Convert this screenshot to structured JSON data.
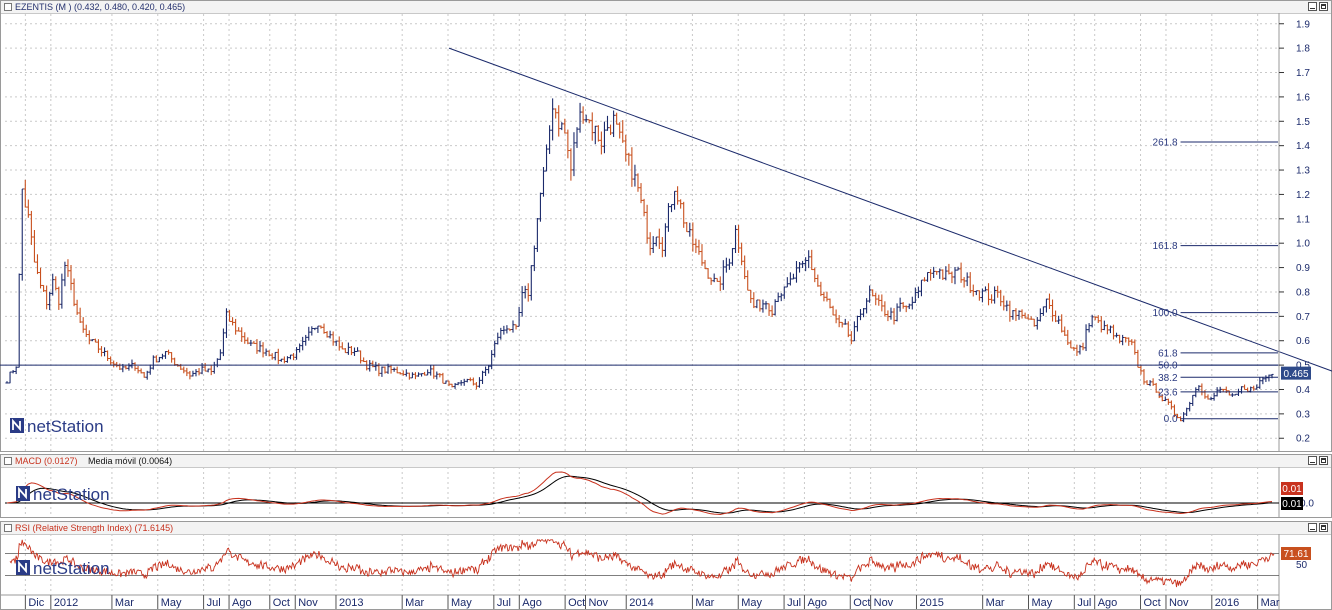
{
  "header": {
    "title": "EZENTIS (M )",
    "ohlc": "(0.432, 0.480, 0.420, 0.465)"
  },
  "logo": "netStation",
  "chart_data": [
    {
      "type": "line",
      "title": "EZENTIS (M )",
      "price_axis_ticks": [
        "1.9",
        "1.8",
        "1.7",
        "1.6",
        "1.5",
        "1.4",
        "1.3",
        "1.2",
        "1.1",
        "1.0",
        "0.9",
        "0.8",
        "0.7",
        "0.6",
        "0.5",
        "0.4",
        "0.3",
        "0.2"
      ],
      "ylim": [
        0.16,
        1.94
      ],
      "last_price": 0.465,
      "last_price_label": "0.465",
      "horizontal_line": 0.5,
      "trendline": {
        "from": {
          "week": 145,
          "value": 1.8
        },
        "to": {
          "week": 437,
          "value": 0.465
        }
      },
      "fibonacci": {
        "start_week": 385,
        "levels": [
          {
            "label": "261.8",
            "value": 1.415
          },
          {
            "label": "161.8",
            "value": 0.99
          },
          {
            "label": "100.0",
            "value": 0.715
          },
          {
            "label": "61.8",
            "value": 0.55
          },
          {
            "label": "50.0",
            "value": 0.5
          },
          {
            "label": "38.2",
            "value": 0.45
          },
          {
            "label": "23.6",
            "value": 0.39
          },
          {
            "label": "0.0",
            "value": 0.28
          }
        ]
      },
      "series": [
        {
          "keypoints": [
            [
              0,
              0.44
            ],
            [
              3,
              0.5
            ],
            [
              5,
              1.22
            ],
            [
              7,
              1.1
            ],
            [
              9,
              0.92
            ],
            [
              11,
              0.82
            ],
            [
              13,
              0.76
            ],
            [
              15,
              0.84
            ],
            [
              17,
              0.77
            ],
            [
              19,
              0.91
            ],
            [
              21,
              0.82
            ],
            [
              24,
              0.66
            ],
            [
              27,
              0.6
            ],
            [
              30,
              0.57
            ],
            [
              34,
              0.52
            ],
            [
              38,
              0.48
            ],
            [
              42,
              0.5
            ],
            [
              45,
              0.45
            ],
            [
              48,
              0.52
            ],
            [
              52,
              0.55
            ],
            [
              56,
              0.5
            ],
            [
              60,
              0.46
            ],
            [
              64,
              0.48
            ],
            [
              67,
              0.47
            ],
            [
              70,
              0.55
            ],
            [
              72,
              0.7
            ],
            [
              75,
              0.65
            ],
            [
              80,
              0.58
            ],
            [
              85,
              0.56
            ],
            [
              90,
              0.52
            ],
            [
              95,
              0.55
            ],
            [
              98,
              0.6
            ],
            [
              102,
              0.68
            ],
            [
              106,
              0.62
            ],
            [
              110,
              0.56
            ],
            [
              114,
              0.56
            ],
            [
              118,
              0.5
            ],
            [
              122,
              0.48
            ],
            [
              126,
              0.48
            ],
            [
              130,
              0.47
            ],
            [
              134,
              0.45
            ],
            [
              138,
              0.48
            ],
            [
              142,
              0.45
            ],
            [
              146,
              0.4
            ],
            [
              150,
              0.44
            ],
            [
              154,
              0.42
            ],
            [
              158,
              0.5
            ],
            [
              161,
              0.62
            ],
            [
              164,
              0.66
            ],
            [
              167,
              0.64
            ],
            [
              169,
              0.78
            ],
            [
              171,
              0.8
            ],
            [
              173,
              1.0
            ],
            [
              175,
              1.2
            ],
            [
              177,
              1.35
            ],
            [
              179,
              1.58
            ],
            [
              181,
              1.5
            ],
            [
              183,
              1.45
            ],
            [
              185,
              1.3
            ],
            [
              187,
              1.48
            ],
            [
              189,
              1.55
            ],
            [
              191,
              1.5
            ],
            [
              193,
              1.46
            ],
            [
              195,
              1.42
            ],
            [
              197,
              1.48
            ],
            [
              199,
              1.5
            ],
            [
              201,
              1.42
            ],
            [
              203,
              1.35
            ],
            [
              205,
              1.3
            ],
            [
              207,
              1.22
            ],
            [
              209,
              1.1
            ],
            [
              211,
              1.0
            ],
            [
              213,
              1.05
            ],
            [
              215,
              1.0
            ],
            [
              217,
              1.12
            ],
            [
              219,
              1.24
            ],
            [
              221,
              1.15
            ],
            [
              223,
              1.05
            ],
            [
              225,
              1.0
            ],
            [
              227,
              0.95
            ],
            [
              229,
              0.9
            ],
            [
              231,
              0.86
            ],
            [
              233,
              0.82
            ],
            [
              235,
              0.88
            ],
            [
              237,
              0.94
            ],
            [
              239,
              1.05
            ],
            [
              241,
              0.95
            ],
            [
              243,
              0.8
            ],
            [
              245,
              0.74
            ],
            [
              247,
              0.75
            ],
            [
              249,
              0.76
            ],
            [
              251,
              0.73
            ],
            [
              253,
              0.8
            ],
            [
              255,
              0.8
            ],
            [
              257,
              0.84
            ],
            [
              259,
              0.88
            ],
            [
              261,
              0.9
            ],
            [
              263,
              0.94
            ],
            [
              265,
              0.86
            ],
            [
              267,
              0.79
            ],
            [
              269,
              0.76
            ],
            [
              271,
              0.7
            ],
            [
              273,
              0.66
            ],
            [
              275,
              0.65
            ],
            [
              277,
              0.6
            ],
            [
              279,
              0.68
            ],
            [
              281,
              0.75
            ],
            [
              283,
              0.79
            ],
            [
              285,
              0.76
            ],
            [
              287,
              0.73
            ],
            [
              289,
              0.71
            ],
            [
              291,
              0.7
            ],
            [
              293,
              0.74
            ],
            [
              295,
              0.73
            ],
            [
              297,
              0.76
            ],
            [
              299,
              0.8
            ],
            [
              301,
              0.86
            ],
            [
              303,
              0.88
            ],
            [
              305,
              0.9
            ],
            [
              307,
              0.87
            ],
            [
              309,
              0.86
            ],
            [
              311,
              0.88
            ],
            [
              313,
              0.87
            ],
            [
              315,
              0.84
            ],
            [
              317,
              0.82
            ],
            [
              319,
              0.8
            ],
            [
              321,
              0.79
            ],
            [
              323,
              0.78
            ],
            [
              325,
              0.79
            ],
            [
              327,
              0.76
            ],
            [
              329,
              0.72
            ],
            [
              331,
              0.7
            ],
            [
              333,
              0.72
            ],
            [
              335,
              0.68
            ],
            [
              337,
              0.66
            ],
            [
              339,
              0.7
            ],
            [
              341,
              0.76
            ],
            [
              343,
              0.72
            ],
            [
              345,
              0.68
            ],
            [
              347,
              0.62
            ],
            [
              349,
              0.58
            ],
            [
              351,
              0.55
            ],
            [
              353,
              0.58
            ],
            [
              355,
              0.68
            ],
            [
              357,
              0.7
            ],
            [
              359,
              0.64
            ],
            [
              361,
              0.66
            ],
            [
              363,
              0.62
            ],
            [
              365,
              0.6
            ],
            [
              367,
              0.6
            ],
            [
              369,
              0.58
            ],
            [
              371,
              0.5
            ],
            [
              373,
              0.44
            ],
            [
              375,
              0.42
            ],
            [
              377,
              0.4
            ],
            [
              379,
              0.36
            ],
            [
              381,
              0.34
            ],
            [
              383,
              0.3
            ],
            [
              385,
              0.28
            ],
            [
              387,
              0.32
            ],
            [
              389,
              0.38
            ],
            [
              391,
              0.42
            ],
            [
              393,
              0.38
            ],
            [
              395,
              0.36
            ],
            [
              397,
              0.39
            ],
            [
              399,
              0.4
            ],
            [
              401,
              0.38
            ],
            [
              403,
              0.37
            ],
            [
              405,
              0.4
            ],
            [
              407,
              0.39
            ],
            [
              409,
              0.41
            ],
            [
              411,
              0.43
            ],
            [
              413,
              0.45
            ],
            [
              415,
              0.465
            ]
          ]
        }
      ],
      "x_axis_labels": [
        {
          "label": "Dic",
          "week": 4
        },
        {
          "label": "2012",
          "week": 9
        },
        {
          "label": "Mar",
          "week": 21
        },
        {
          "label": "May",
          "week": 30
        },
        {
          "label": "Jul",
          "week": 39
        },
        {
          "label": "Ago",
          "week": 44
        },
        {
          "label": "Oct",
          "week": 52
        },
        {
          "label": "Nov",
          "week": 57
        },
        {
          "label": "2013",
          "week": 65
        },
        {
          "label": "Mar",
          "week": 78
        },
        {
          "label": "May",
          "week": 87
        },
        {
          "label": "Jul",
          "week": 96
        },
        {
          "label": "Ago",
          "week": 101
        },
        {
          "label": "Oct",
          "week": 110
        },
        {
          "label": "Nov",
          "week": 114
        },
        {
          "label": "2014",
          "week": 122
        },
        {
          "label": "Mar",
          "week": 135
        },
        {
          "label": "May",
          "week": 144
        },
        {
          "label": "Jul",
          "week": 153
        },
        {
          "label": "Ago",
          "week": 157
        },
        {
          "label": "Oct",
          "week": 166
        },
        {
          "label": "Nov",
          "week": 170
        },
        {
          "label": "2015",
          "week": 179
        },
        {
          "label": "Mar",
          "week": 192
        },
        {
          "label": "May",
          "week": 201
        },
        {
          "label": "Jul",
          "week": 210
        },
        {
          "label": "Ago",
          "week": 214
        },
        {
          "label": "Oct",
          "week": 223
        },
        {
          "label": "Nov",
          "week": 228
        },
        {
          "label": "2016",
          "week": 237
        },
        {
          "label": "Mar",
          "week": 246
        }
      ]
    },
    {
      "type": "line",
      "title": "MACD (0.0127)",
      "series_labels": [
        "MACD (0.0127)",
        "Media móvil (0.0064)"
      ],
      "zero_label": "0.0",
      "value_badges": [
        {
          "label": "0.01",
          "color": "#c8321e"
        },
        {
          "label": "0.01",
          "color": "#000000"
        }
      ]
    },
    {
      "type": "line",
      "title": "RSI (Relative Strength Index) (71.6145)",
      "ylim": [
        0,
        100
      ],
      "levels": [
        70,
        30
      ],
      "tick_label": "50",
      "last_value_label": "71.61"
    }
  ],
  "colors": {
    "up": "#1b2a6b",
    "down": "#c8501e",
    "trend": "#1b2a6b",
    "grid": "#c9c9c9",
    "badge_price": "#2e4a8a",
    "badge_rsi": "#c8501e"
  },
  "macd_panel": {
    "label": "MACD (0.0127)",
    "sub": "Media móvil (0.0064)"
  },
  "rsi_panel": {
    "label": "RSI (Relative Strength Index) (71.6145)"
  }
}
